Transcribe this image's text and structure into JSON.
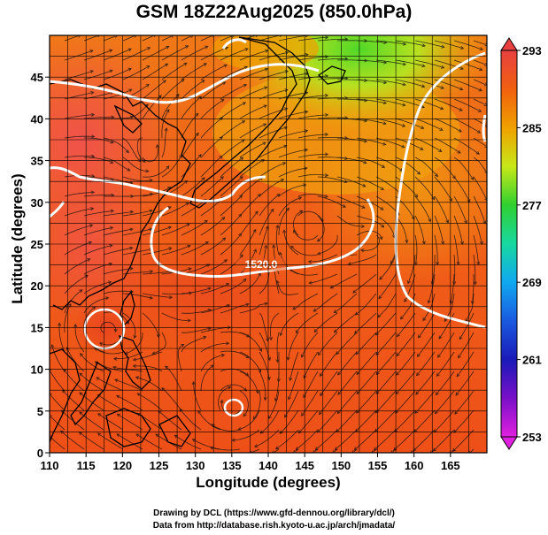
{
  "title": "GSM 18Z22Aug2025 (850.0hPa)",
  "xlabel": "Longitude (degrees)",
  "ylabel": "Latitude  (degrees)",
  "credit_line1": "Drawing by DCL (https://www.gfd-dennou.org/library/dcl/)",
  "credit_line2": "Data from http://database.rish.kyoto-u.ac.jp/arch/jmadata/",
  "contour_label": "1520.0",
  "colors": {
    "frame": "#000000",
    "contour": "#ffffff",
    "coast": "#000000"
  },
  "chart_data": {
    "type": "heatmap",
    "x_ticks": [
      "110",
      "115",
      "120",
      "125",
      "130",
      "135",
      "140",
      "145",
      "150",
      "155",
      "160",
      "165"
    ],
    "y_ticks": [
      "0",
      "5",
      "10",
      "15",
      "20",
      "25",
      "30",
      "35",
      "40",
      "45"
    ],
    "xlim": [
      110,
      170
    ],
    "ylim": [
      0,
      50
    ],
    "grid": true,
    "colorbar": {
      "ticks": [
        "293",
        "285",
        "277",
        "269",
        "261",
        "253"
      ],
      "min": 253,
      "max": 293,
      "stops": [
        {
          "value": 253,
          "color": "#e020e0"
        },
        {
          "value": 257,
          "color": "#7a10c8"
        },
        {
          "value": 261,
          "color": "#1a1ab8"
        },
        {
          "value": 265,
          "color": "#1a5ae0"
        },
        {
          "value": 269,
          "color": "#10a8f0"
        },
        {
          "value": 273,
          "color": "#18d8a0"
        },
        {
          "value": 277,
          "color": "#30d030"
        },
        {
          "value": 281,
          "color": "#c8e818"
        },
        {
          "value": 285,
          "color": "#f0a000"
        },
        {
          "value": 289,
          "color": "#f06010"
        },
        {
          "value": 293,
          "color": "#e84040"
        }
      ]
    }
  }
}
